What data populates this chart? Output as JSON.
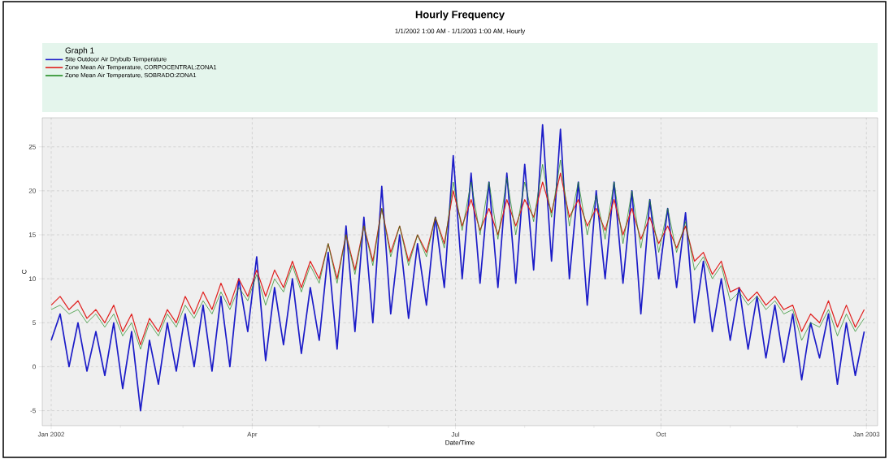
{
  "chart_data": {
    "type": "line",
    "title": "Hourly Frequency",
    "subtitle": "1/1/2002 1:00 AM - 1/1/2003 1:00 AM, Hourly",
    "xlabel": "Date/Time",
    "ylabel": "C",
    "legend_title": "Graph 1",
    "legend": "top",
    "grid": true,
    "marker": "none",
    "line_style": "solid",
    "xlim": [
      "2001-12-28",
      "2003-01-06"
    ],
    "xticks": [
      {
        "value": "2002-01-01",
        "label": "Jan 2002"
      },
      {
        "value": "2002-02-01",
        "label": null
      },
      {
        "value": "2002-03-01",
        "label": null
      },
      {
        "value": "2002-04-01",
        "label": "Apr"
      },
      {
        "value": "2002-05-01",
        "label": null
      },
      {
        "value": "2002-06-01",
        "label": null
      },
      {
        "value": "2002-07-01",
        "label": "Jul"
      },
      {
        "value": "2002-08-01",
        "label": null
      },
      {
        "value": "2002-09-01",
        "label": null
      },
      {
        "value": "2002-10-01",
        "label": "Oct"
      },
      {
        "value": "2002-11-01",
        "label": null
      },
      {
        "value": "2002-12-01",
        "label": null
      },
      {
        "value": "2003-01-01",
        "label": "Jan 2003"
      }
    ],
    "ylim": [
      -6.7,
      28.3
    ],
    "yticks": [
      -5,
      0,
      5,
      10,
      15,
      20,
      25
    ],
    "x": [
      "2002-01-01",
      "2002-01-05",
      "2002-01-09",
      "2002-01-13",
      "2002-01-17",
      "2002-01-21",
      "2002-01-25",
      "2002-01-29",
      "2002-02-02",
      "2002-02-06",
      "2002-02-10",
      "2002-02-14",
      "2002-02-18",
      "2002-02-22",
      "2002-02-26",
      "2002-03-02",
      "2002-03-06",
      "2002-03-10",
      "2002-03-14",
      "2002-03-18",
      "2002-03-22",
      "2002-03-26",
      "2002-03-30",
      "2002-04-03",
      "2002-04-07",
      "2002-04-11",
      "2002-04-15",
      "2002-04-19",
      "2002-04-23",
      "2002-04-27",
      "2002-05-01",
      "2002-05-05",
      "2002-05-09",
      "2002-05-13",
      "2002-05-17",
      "2002-05-21",
      "2002-05-25",
      "2002-05-29",
      "2002-06-02",
      "2002-06-06",
      "2002-06-10",
      "2002-06-14",
      "2002-06-18",
      "2002-06-22",
      "2002-06-26",
      "2002-06-30",
      "2002-07-04",
      "2002-07-08",
      "2002-07-12",
      "2002-07-16",
      "2002-07-20",
      "2002-07-24",
      "2002-07-28",
      "2002-08-01",
      "2002-08-05",
      "2002-08-09",
      "2002-08-13",
      "2002-08-17",
      "2002-08-21",
      "2002-08-25",
      "2002-08-29",
      "2002-09-02",
      "2002-09-06",
      "2002-09-10",
      "2002-09-14",
      "2002-09-18",
      "2002-09-22",
      "2002-09-26",
      "2002-09-30",
      "2002-10-04",
      "2002-10-08",
      "2002-10-12",
      "2002-10-16",
      "2002-10-20",
      "2002-10-24",
      "2002-10-28",
      "2002-11-01",
      "2002-11-05",
      "2002-11-09",
      "2002-11-13",
      "2002-11-17",
      "2002-11-21",
      "2002-11-25",
      "2002-11-29",
      "2002-12-03",
      "2002-12-07",
      "2002-12-11",
      "2002-12-15",
      "2002-12-19",
      "2002-12-23",
      "2002-12-27",
      "2002-12-31"
    ],
    "series": [
      {
        "name": "Site Outdoor Air Drybulb Temperature",
        "color": "#1c1cc8",
        "values": [
          3,
          6,
          0,
          5,
          -0.5,
          4,
          -1,
          5,
          -2.5,
          4,
          -5,
          3,
          -2,
          5,
          -0.5,
          6,
          0,
          7,
          -0.5,
          8,
          0,
          10,
          4,
          12.5,
          0.7,
          9,
          2.5,
          10,
          1.5,
          9,
          3,
          13,
          2,
          16,
          4,
          17,
          5,
          20.5,
          6,
          15,
          5.5,
          14,
          7,
          17,
          9,
          24,
          10,
          22,
          9.5,
          21,
          9,
          22,
          9.5,
          23,
          11,
          27.5,
          12,
          27,
          10,
          21,
          7,
          20,
          10,
          21,
          9.5,
          20,
          6,
          19,
          10,
          18,
          9,
          17.5,
          5,
          12,
          4,
          10,
          3,
          9,
          2,
          8,
          1,
          7,
          0.5,
          6,
          -1.5,
          5,
          1,
          6,
          -2,
          5,
          -1,
          4
        ]
      },
      {
        "name": "Zone Mean Air Temperature, CORPOCENTRAL:ZONA1",
        "color": "#e0201e",
        "values": [
          7,
          8,
          6.5,
          7.5,
          5.5,
          6.5,
          5,
          7,
          4,
          6,
          2.5,
          5.5,
          4,
          6.5,
          5,
          8,
          6,
          8.5,
          6.5,
          9.5,
          7,
          10,
          8,
          11,
          8,
          11,
          9,
          12,
          9,
          12,
          10,
          14,
          10,
          15,
          11,
          16,
          12,
          18,
          13,
          16,
          12,
          15,
          13,
          17,
          14,
          20,
          16,
          19,
          15.5,
          18,
          15,
          19,
          16,
          19,
          17,
          21,
          17.5,
          22,
          17,
          19,
          16,
          18,
          15.5,
          19,
          15,
          18,
          14.5,
          17,
          14,
          16,
          13.5,
          16,
          12,
          13,
          10.5,
          12,
          8.5,
          9,
          7.5,
          8.5,
          7,
          8,
          6.5,
          7,
          4,
          6,
          5,
          7.5,
          4.5,
          7,
          4.5,
          6.5
        ]
      },
      {
        "name": "Zone Mean Air Temperature, SOBRADO:ZONA1",
        "color": "#1e8a1e",
        "values": [
          6.5,
          7,
          6,
          6.5,
          5,
          6,
          4.5,
          6,
          3.5,
          5,
          2,
          5,
          3.5,
          6,
          4.5,
          7,
          5.5,
          7.5,
          6,
          8.5,
          6.5,
          9,
          7.5,
          10.5,
          7,
          10,
          8.5,
          11.5,
          8.5,
          11.5,
          9.5,
          14,
          9.5,
          15,
          10.5,
          16,
          11.5,
          18,
          12.5,
          16,
          11.5,
          15,
          12.5,
          17,
          13.5,
          21,
          15.5,
          21,
          15,
          21,
          14.5,
          21.5,
          15,
          21,
          16.5,
          23,
          17,
          23.5,
          16,
          21,
          15,
          19.5,
          14.5,
          21,
          14,
          20,
          13.5,
          19,
          13,
          18,
          13,
          16.5,
          11,
          12.5,
          10,
          11.5,
          7.5,
          8.5,
          7,
          8,
          6.5,
          7.5,
          6,
          6.5,
          3,
          5,
          4.5,
          6.5,
          3.5,
          6,
          4,
          5.5
        ]
      }
    ]
  }
}
